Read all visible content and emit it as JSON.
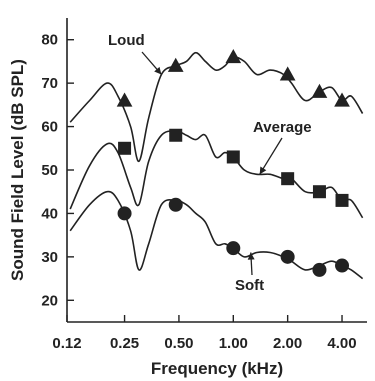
{
  "chart_data": {
    "type": "line",
    "title": "",
    "xlabel": "Frequency (kHz)",
    "ylabel": "Sound Field Level (dB SPL)",
    "xscale": "log",
    "xlim": [
      0.12,
      5.5
    ],
    "ylim": [
      15,
      85
    ],
    "x_ticks": [
      0.12,
      0.25,
      0.5,
      1.0,
      2.0,
      4.0
    ],
    "x_tick_labels": [
      "0.12",
      "0.25",
      "0.50",
      "1.00",
      "2.00",
      "4.00"
    ],
    "y_ticks": [
      20,
      30,
      40,
      50,
      60,
      70,
      80
    ],
    "y_tick_labels": [
      "20",
      "30",
      "40",
      "50",
      "60",
      "70",
      "80"
    ],
    "grid": false,
    "legend": "none",
    "series": [
      {
        "name": "Loud",
        "marker": "triangle",
        "curve_x": [
          0.125,
          0.16,
          0.2,
          0.23,
          0.27,
          0.3,
          0.34,
          0.4,
          0.48,
          0.55,
          0.62,
          0.7,
          0.8,
          0.9,
          1.0,
          1.15,
          1.35,
          1.6,
          1.9,
          2.1,
          2.5,
          3.0,
          3.5,
          4.0,
          4.5,
          5.2
        ],
        "curve_y": [
          61,
          66,
          70,
          67,
          60,
          52,
          62,
          72,
          74,
          75,
          77,
          75,
          73,
          74,
          76,
          75,
          72,
          73,
          72,
          70,
          66,
          68,
          69,
          66,
          67,
          63
        ],
        "markers_x": [
          0.25,
          0.48,
          1.0,
          2.0,
          3.0,
          4.0
        ],
        "markers_y": [
          66,
          74,
          76,
          72,
          68,
          66
        ]
      },
      {
        "name": "Average",
        "marker": "square",
        "curve_x": [
          0.125,
          0.16,
          0.2,
          0.23,
          0.27,
          0.3,
          0.34,
          0.4,
          0.48,
          0.55,
          0.62,
          0.7,
          0.8,
          0.9,
          1.0,
          1.15,
          1.35,
          1.6,
          1.9,
          2.1,
          2.5,
          3.0,
          3.5,
          4.0,
          4.5,
          5.2
        ],
        "curve_y": [
          41,
          51,
          56,
          54,
          46,
          42,
          52,
          58,
          59,
          58,
          57,
          58,
          53,
          54,
          53,
          50,
          49,
          49,
          48,
          48,
          45,
          45,
          46,
          43,
          43,
          39
        ],
        "markers_x": [
          0.25,
          0.48,
          1.0,
          2.0,
          3.0,
          4.0
        ],
        "markers_y": [
          55,
          58,
          53,
          48,
          45,
          43
        ]
      },
      {
        "name": "Soft",
        "marker": "circle",
        "curve_x": [
          0.125,
          0.16,
          0.2,
          0.23,
          0.27,
          0.3,
          0.34,
          0.4,
          0.48,
          0.55,
          0.62,
          0.7,
          0.8,
          0.9,
          1.0,
          1.15,
          1.35,
          1.6,
          1.9,
          2.1,
          2.5,
          3.0,
          3.5,
          4.0,
          4.5,
          5.2
        ],
        "curve_y": [
          36,
          42,
          45,
          43,
          36,
          27,
          33,
          42,
          43,
          42,
          40,
          38,
          33,
          33,
          32,
          30,
          31,
          31,
          30,
          29,
          27,
          28,
          29,
          28,
          27,
          25
        ],
        "markers_x": [
          0.25,
          0.48,
          1.0,
          2.0,
          3.0,
          4.0
        ],
        "markers_y": [
          40,
          42,
          32,
          30,
          27,
          28
        ]
      }
    ],
    "annotations": [
      {
        "text": "Loud",
        "series": "Loud",
        "points_to_x": 0.4,
        "points_to_y": 72
      },
      {
        "text": "Average",
        "series": "Average",
        "points_to_x": 1.4,
        "points_to_y": 49
      },
      {
        "text": "Soft",
        "series": "Soft",
        "points_to_x": 1.25,
        "points_to_y": 31
      }
    ]
  }
}
